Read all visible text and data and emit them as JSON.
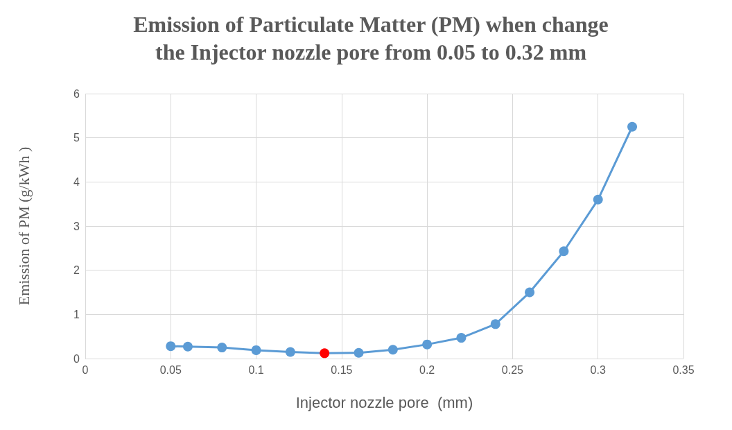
{
  "chart_data": {
    "type": "line",
    "title": "Emission of Particulate Matter (PM) when change\nthe Injector nozzle pore from 0.05 to 0.32 mm",
    "xlabel": "Injector nozzle pore  (mm)",
    "ylabel": "Emission of PM (g/kWh )",
    "x": [
      0.05,
      0.06,
      0.08,
      0.1,
      0.12,
      0.14,
      0.16,
      0.18,
      0.2,
      0.22,
      0.24,
      0.26,
      0.28,
      0.3,
      0.32
    ],
    "series": [
      {
        "color": "#5b9bd5",
        "values": [
          0.28,
          0.27,
          0.25,
          0.19,
          0.15,
          0.12,
          0.13,
          0.2,
          0.32,
          0.47,
          0.78,
          1.5,
          2.43,
          3.6,
          5.25
        ],
        "colors": [
          "#5b9bd5",
          "#5b9bd5",
          "#5b9bd5",
          "#5b9bd5",
          "#5b9bd5",
          "#ff0000",
          "#5b9bd5",
          "#5b9bd5",
          "#5b9bd5",
          "#5b9bd5",
          "#5b9bd5",
          "#5b9bd5",
          "#5b9bd5",
          "#5b9bd5",
          "#5b9bd5"
        ]
      }
    ],
    "xlim": [
      0,
      0.35
    ],
    "xticks": [
      0,
      0.05,
      0.1,
      0.15,
      0.2,
      0.25,
      0.3,
      0.35
    ],
    "ylim": [
      0,
      6
    ],
    "yticks": [
      0,
      1,
      2,
      3,
      4,
      5,
      6
    ],
    "grid": true,
    "marker": "circle",
    "line_style": "solid"
  }
}
